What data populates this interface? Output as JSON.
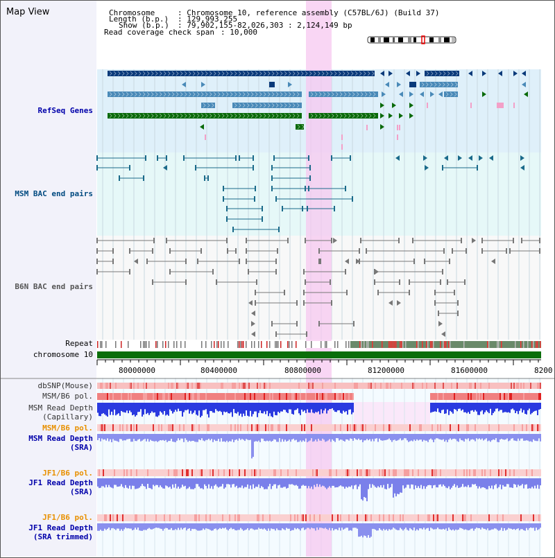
{
  "title": "Map View",
  "header": {
    "chromosome_label": "Chromosome",
    "chromosome_value": ": Chromosome 10, reference assembly (C57BL/6J) (Build 37)",
    "length_label": "Length (b.p.)",
    "length_value": ": 129,993,255",
    "show_label": "Show (b.p.)",
    "show_value": ": 79,902,155-82,026,303 : 2,124,149 bp",
    "coverage_label": "Read coverage check span",
    "coverage_value": ": 10,000"
  },
  "tracks": {
    "refseq": "RefSeq Genes",
    "msm_bac": "MSM BAC end pairs",
    "b6n_bac": "B6N BAC end pairs",
    "repeat": "Repeat",
    "chromosome": "chromosome 10",
    "dbsnp": "dbSNP(Mouse)",
    "msm_b6_pol_1": "MSM/B6 pol.",
    "msm_depth_cap_1": "MSM Read Depth",
    "msm_depth_cap_2": "(Capillary)",
    "msm_b6_pol_2": "MSM/B6 pol.",
    "msm_depth_sra_1": "MSM Read Depth",
    "msm_depth_sra_2": "(SRA)",
    "jf1_b6_pol_1": "JF1/B6 pol.",
    "jf1_depth_sra_1": "JF1 Read Depth",
    "jf1_depth_sra_2": "(SRA)",
    "jf1_b6_pol_2": "JF1/B6 pol.",
    "jf1_depth_trim_1": "JF1 Read Depth",
    "jf1_depth_trim_2": "(SRA trimmed)"
  },
  "axis": {
    "ticks": [
      "80000000",
      "80400000",
      "80800000",
      "81200000",
      "81600000",
      "8200"
    ]
  },
  "colors": {
    "refseq_dark": "#0a3a7a",
    "refseq_mid": "#4a8ab8",
    "refseq_green": "#0a6a0a",
    "refseq_bg": "#dff0fa",
    "msm_bg": "#e6f8f8",
    "msm_line": "#1a6a8a",
    "b6n_line": "#777777",
    "highlight": "#f7c8f0",
    "chromosome_bar": "#0a6e0a",
    "msm_label": "#004a80",
    "blue_label": "#0000aa",
    "orange_label": "#e89000"
  }
}
